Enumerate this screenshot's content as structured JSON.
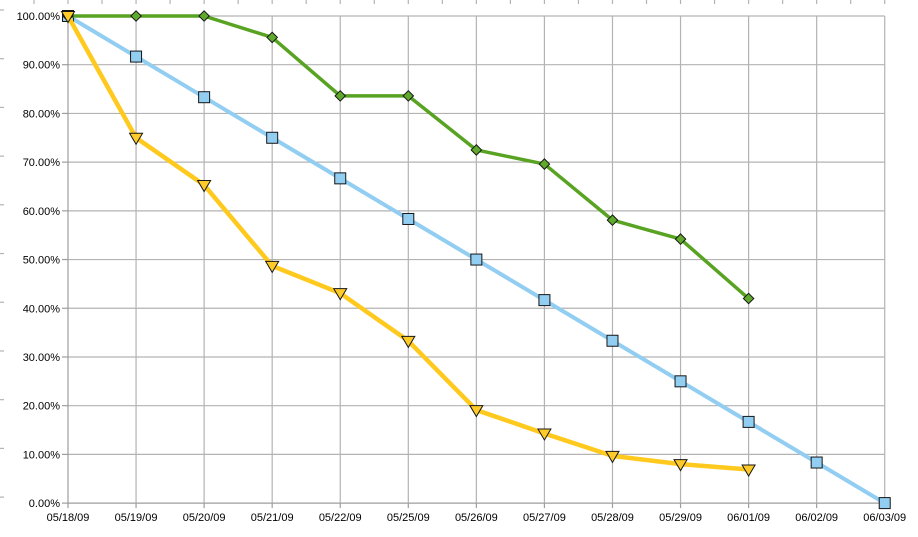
{
  "chart_data": {
    "type": "line",
    "title": "",
    "xlabel": "",
    "ylabel": "",
    "legend": "none",
    "grid": true,
    "ylim": [
      0,
      100
    ],
    "yticks": [
      0,
      10,
      20,
      30,
      40,
      50,
      60,
      70,
      80,
      90,
      100
    ],
    "y_tick_labels": [
      "0.00%",
      "10.00%",
      "20.00%",
      "30.00%",
      "40.00%",
      "50.00%",
      "60.00%",
      "70.00%",
      "80.00%",
      "90.00%",
      "100.00%"
    ],
    "x": [
      "05/18/09",
      "05/19/09",
      "05/20/09",
      "05/21/09",
      "05/22/09",
      "05/25/09",
      "05/26/09",
      "05/27/09",
      "05/28/09",
      "05/29/09",
      "06/01/09",
      "06/02/09",
      "06/03/09"
    ],
    "series": [
      {
        "name": "blue-square-series",
        "marker": "square",
        "color": "#92CDF2",
        "marker_fill": "#92CDF2",
        "line_width": 4,
        "values": [
          100,
          91.67,
          83.33,
          75,
          66.67,
          58.33,
          50,
          41.67,
          33.33,
          25,
          16.67,
          8.33,
          0
        ]
      },
      {
        "name": "green-diamond-series",
        "marker": "diamond",
        "color": "#58A322",
        "marker_fill": "#5FA92D",
        "line_width": 3.5,
        "values": [
          100,
          100,
          100,
          95.6,
          83.6,
          83.6,
          72.5,
          69.6,
          58.1,
          54.2,
          42,
          null,
          null
        ]
      },
      {
        "name": "yellow-triangle-series",
        "marker": "triangle-down",
        "color": "#FFC91E",
        "marker_fill": "#FFCB29",
        "line_width": 4.5,
        "values": [
          100,
          75,
          65.3,
          48.7,
          43.1,
          33.3,
          19.1,
          14.3,
          9.7,
          8,
          6.9,
          null,
          null
        ]
      }
    ],
    "colors": {
      "background": "#ffffff",
      "gridline": "#b3b3b3",
      "axis": "#9e9e9e",
      "edge_tick": "#b3b3b3",
      "marker_outline": "#161616",
      "label": "#000000"
    }
  }
}
